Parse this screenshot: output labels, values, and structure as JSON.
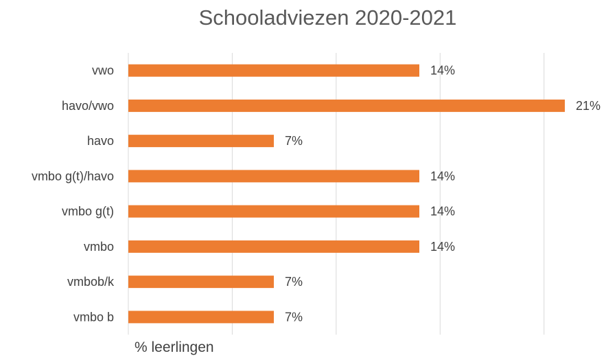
{
  "chart_data": {
    "type": "bar",
    "orientation": "horizontal",
    "title": "Schooladviezen 2020-2021",
    "xlabel": "% leerlingen",
    "ylabel": "",
    "categories": [
      "vwo",
      "havo/vwo",
      "havo",
      "vmbo g(t)/havo",
      "vmbo g(t)",
      "vmbo",
      "vmbob/k",
      "vmbo b"
    ],
    "values": [
      14,
      21,
      7,
      14,
      14,
      14,
      7,
      7
    ],
    "value_labels": [
      "14%",
      "21%",
      "7%",
      "14%",
      "14%",
      "14%",
      "7%",
      "7%"
    ],
    "unit": "%",
    "xlim": [
      0,
      25
    ],
    "grid": "vertical",
    "legend": "none"
  },
  "colors": {
    "bar": "#ED7D31",
    "grid": "#D9D9D9",
    "text": "#404040",
    "title": "#595959"
  }
}
